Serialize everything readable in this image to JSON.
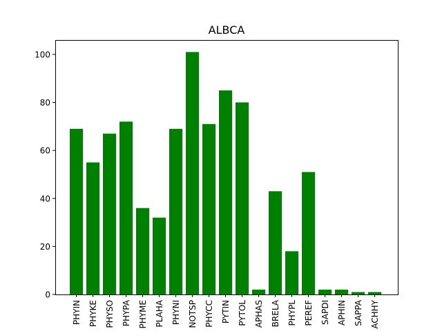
{
  "chart_data": {
    "type": "bar",
    "title": "ALBCA",
    "xlabel": "",
    "ylabel": "",
    "categories": [
      "PHYIN",
      "PHYKE",
      "PHYSO",
      "PHYPA",
      "PHYME",
      "PLAHA",
      "PHYNI",
      "NOTSP",
      "PHYCC",
      "PYTIN",
      "PYTOL",
      "APHAS",
      "BRELA",
      "PHYPL",
      "PEREF",
      "SAPDI",
      "APHIN",
      "SAPPA",
      "ACHHY"
    ],
    "values": [
      69,
      55,
      67,
      72,
      36,
      32,
      69,
      101,
      71,
      85,
      80,
      2,
      43,
      18,
      51,
      2,
      2,
      1,
      1
    ],
    "ylim": [
      0,
      106
    ],
    "yticks": [
      0,
      20,
      40,
      60,
      80,
      100
    ],
    "bar_color": "#008000",
    "grid": false,
    "legend": "none"
  }
}
